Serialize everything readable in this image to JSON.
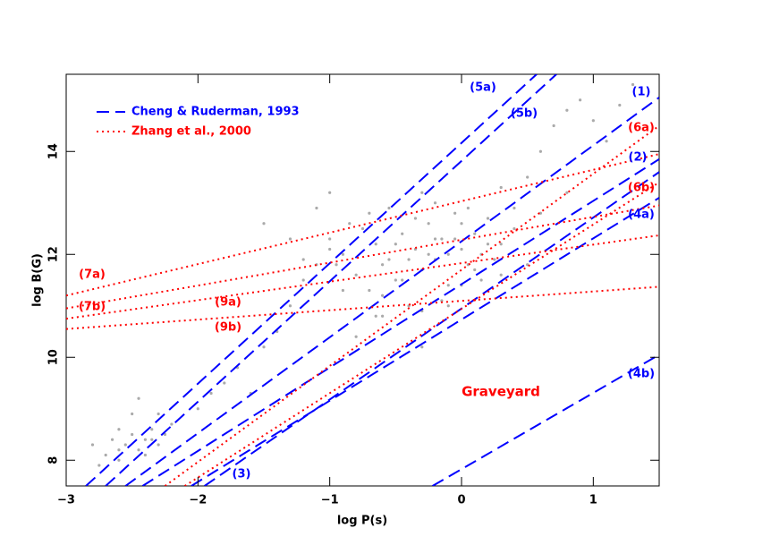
{
  "chart_data": {
    "type": "scatter",
    "xlabel": "log P(s)",
    "ylabel": "log B(G)",
    "xlim": [
      -3,
      1.5
    ],
    "ylim": [
      7.5,
      15.5
    ],
    "xticks": [
      {
        "value": -3,
        "label": "−3"
      },
      {
        "value": -2,
        "label": "−2"
      },
      {
        "value": -1,
        "label": "−1"
      },
      0,
      1
    ],
    "yticks": [
      8,
      10,
      12,
      14
    ],
    "annotation": "Graveyard",
    "legend": [
      {
        "name": "Cheng & Ruderman, 1993",
        "color": "#0000ff",
        "style": "dashed"
      },
      {
        "name": "Zhang et al., 2000",
        "color": "#ff0000",
        "style": "dotted"
      }
    ],
    "points": {
      "color": "#aaaaaa",
      "x": [
        -2.8,
        -2.7,
        -2.65,
        -2.6,
        -2.55,
        -2.5,
        -2.45,
        -2.4,
        -2.35,
        -2.3,
        -2.25,
        -2.2,
        -2.75,
        -2.6,
        -2.5,
        -2.4,
        -2.3,
        -2.6,
        -2.45,
        -2.35,
        -2.0,
        -1.8,
        -1.6,
        -1.5,
        -1.4,
        -1.3,
        -1.2,
        -1.1,
        -1.0,
        -0.9,
        -0.8,
        -0.75,
        -0.7,
        -0.65,
        -0.6,
        -0.55,
        -0.5,
        -0.45,
        -0.4,
        -0.35,
        -0.3,
        -0.25,
        -0.2,
        -0.15,
        -0.1,
        -0.05,
        0,
        0.05,
        0.1,
        0.15,
        0.2,
        0.25,
        0.3,
        0.4,
        -0.85,
        -0.7,
        -0.6,
        -0.5,
        -0.4,
        -0.3,
        -0.2,
        -0.1,
        0,
        0.1,
        0.2,
        0.3,
        -0.45,
        -0.35,
        -0.25,
        -0.15,
        -0.05,
        0.05,
        0.15,
        -0.55,
        -0.65,
        -0.3,
        -0.2,
        0,
        0.4,
        0.5,
        0.6,
        0.7,
        0.8,
        0.9,
        1.0,
        1.2,
        0.6,
        0.8,
        1.1,
        0.5,
        0.3,
        1.3,
        -1.5,
        -1.3,
        -1.2,
        -1.1,
        -1.0,
        -1.0,
        -0.9,
        -0.95,
        -0.8,
        -0.6,
        -0.3,
        -0.1,
        -1.7,
        -1.9
      ],
      "y": [
        8.3,
        8.1,
        8.4,
        8.0,
        8.3,
        8.5,
        8.2,
        8.4,
        8.6,
        8.3,
        8.5,
        8.7,
        7.9,
        8.6,
        8.9,
        8.1,
        8.9,
        8.2,
        9.2,
        8.4,
        9.0,
        9.5,
        9.3,
        10.2,
        10.5,
        11.0,
        11.5,
        11.8,
        12.3,
        12.0,
        11.6,
        12.5,
        11.3,
        12.2,
        11.8,
        12.9,
        11.5,
        12.4,
        11.0,
        12.1,
        11.7,
        12.6,
        11.9,
        12.3,
        11.4,
        12.8,
        12.1,
        11.8,
        12.4,
        12.0,
        12.7,
        11.9,
        12.2,
        12.5,
        12.6,
        12.8,
        11.2,
        12.2,
        11.9,
        10.9,
        12.3,
        12.0,
        12.6,
        11.7,
        12.2,
        11.6,
        11.5,
        12.7,
        12.0,
        11.1,
        12.3,
        12.9,
        11.5,
        11.9,
        10.8,
        13.2,
        13.0,
        11.4,
        12.9,
        13.5,
        14.0,
        14.5,
        14.8,
        15.0,
        14.6,
        14.9,
        12.8,
        13.2,
        14.2,
        11.8,
        13.3,
        15.3,
        12.6,
        12.3,
        11.9,
        12.9,
        12.1,
        13.2,
        11.3,
        11.8,
        10.4,
        10.8,
        10.2,
        11.0,
        9.8,
        9.3
      ]
    },
    "lines": [
      {
        "label": "(1)",
        "color": "#0000ff",
        "style": "dashed",
        "x": [
          -2.55,
          1.5
        ],
        "y": [
          7.5,
          15.05
        ]
      },
      {
        "label": "(2)",
        "color": "#0000ff",
        "style": "dashed",
        "x": [
          -2.42,
          1.5
        ],
        "y": [
          7.5,
          13.85
        ]
      },
      {
        "label": "(3)",
        "color": "#0000ff",
        "style": "dashed",
        "x": [
          -1.95,
          1.5
        ],
        "y": [
          7.5,
          13.6
        ]
      },
      {
        "label": "(4a)",
        "color": "#0000ff",
        "style": "dashed",
        "x": [
          -2.05,
          1.5
        ],
        "y": [
          7.5,
          13.1
        ]
      },
      {
        "label": "(4b)",
        "color": "#0000ff",
        "style": "dashed",
        "x": [
          -0.22,
          1.5
        ],
        "y": [
          7.5,
          10.05
        ]
      },
      {
        "label": "(5a)",
        "color": "#0000ff",
        "style": "dashed",
        "x": [
          -2.85,
          0.57
        ],
        "y": [
          7.5,
          15.5
        ]
      },
      {
        "label": "(5b)",
        "color": "#0000ff",
        "style": "dashed",
        "x": [
          -2.7,
          0.72
        ],
        "y": [
          7.5,
          15.5
        ]
      },
      {
        "label": "(6a)",
        "color": "#ff0000",
        "style": "dotted",
        "x": [
          -2.25,
          1.5
        ],
        "y": [
          7.5,
          14.5
        ]
      },
      {
        "label": "(6b)",
        "color": "#ff0000",
        "style": "dotted",
        "x": [
          -2.1,
          1.5
        ],
        "y": [
          7.5,
          13.4
        ]
      },
      {
        "label": "(7a)",
        "color": "#ff0000",
        "style": "dotted",
        "x": [
          -3,
          1.5
        ],
        "y": [
          11.2,
          13.95
        ]
      },
      {
        "label": "(7b)",
        "color": "#ff0000",
        "style": "dotted",
        "x": [
          -3,
          1.5
        ],
        "y": [
          10.95,
          12.95
        ]
      },
      {
        "label": "(9a)",
        "color": "#ff0000",
        "style": "dotted",
        "x": [
          -3,
          1.5
        ],
        "y": [
          10.75,
          12.37
        ]
      },
      {
        "label": "(9b)",
        "color": "#ff0000",
        "style": "dotted",
        "x": [
          -3,
          1.5
        ],
        "y": [
          10.55,
          11.37
        ]
      }
    ]
  }
}
